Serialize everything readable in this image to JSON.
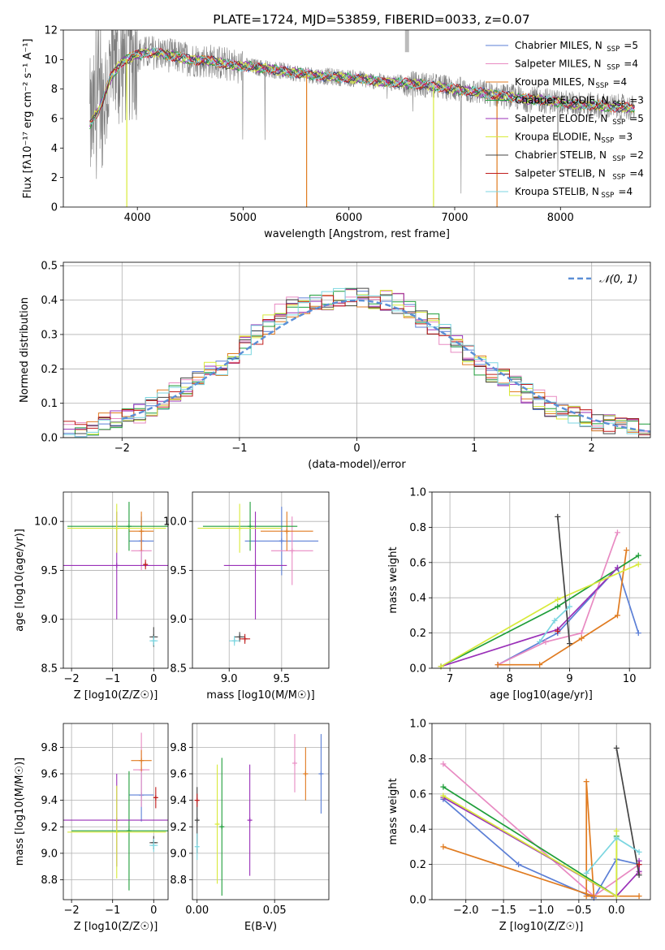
{
  "colors": {
    "Chabrier MILES": "#5b7fd6",
    "Salpeter MILES": "#e88ac2",
    "Kroupa MILES": "#e07b20",
    "Chabrier ELODIE": "#1f9e3a",
    "Salpeter ELODIE": "#9a30b8",
    "Kroupa ELODIE": "#d8ea3a",
    "Chabrier STELIB": "#444444",
    "Salpeter STELIB": "#c01c1c",
    "Kroupa STELIB": "#7bd6e0",
    "data": "#808080",
    "normal": "#5b8fd6"
  },
  "chart_data": [
    {
      "type": "line",
      "title": "PLATE=1724, MJD=53859, FIBERID=0033, z=0.07",
      "xlabel": "wavelength [Angstrom, rest frame]",
      "ylabel": "Flux [fλ10⁻¹⁷ erg cm⁻² s⁻¹ A⁻¹]",
      "xlim": [
        3300,
        8850
      ],
      "ylim": [
        0,
        12
      ],
      "xticks": [
        4000,
        5000,
        6000,
        7000,
        8000
      ],
      "yticks": [
        0,
        2,
        4,
        6,
        8,
        10,
        12
      ],
      "legend_placement": "top-right",
      "series": [
        {
          "name": "Chabrier MILES",
          "nssp": "5"
        },
        {
          "name": "Salpeter MILES",
          "nssp": "4"
        },
        {
          "name": "Kroupa MILES",
          "nssp": "4"
        },
        {
          "name": "Chabrier ELODIE",
          "nssp": "3"
        },
        {
          "name": "Salpeter ELODIE",
          "nssp": "5"
        },
        {
          "name": "Kroupa ELODIE",
          "nssp": "3"
        },
        {
          "name": "Chabrier STELIB",
          "nssp": "2"
        },
        {
          "name": "Salpeter STELIB",
          "nssp": "4"
        },
        {
          "name": "Kroupa STELIB",
          "nssp": "4"
        }
      ],
      "model_continuum": {
        "x": [
          3550,
          3650,
          3750,
          3850,
          3950,
          4050,
          4150,
          4300,
          4500,
          4700,
          4900,
          5100,
          5300,
          5500,
          5700,
          5900,
          6100,
          6300,
          6500,
          6700,
          6900,
          7100,
          7300,
          7500,
          7700,
          7900,
          8100,
          8300,
          8500,
          8700
        ],
        "y": [
          5.6,
          6.8,
          8.8,
          9.8,
          10.2,
          10.4,
          10.5,
          10.3,
          10.0,
          9.9,
          9.6,
          9.5,
          9.3,
          9.1,
          8.9,
          8.8,
          8.7,
          8.5,
          8.4,
          8.3,
          8.1,
          7.9,
          7.7,
          7.5,
          7.3,
          7.2,
          7.0,
          6.9,
          6.8,
          6.7
        ]
      },
      "model_dips": [
        {
          "series": "Kroupa MILES",
          "x": 5600,
          "y": 0
        },
        {
          "series": "Kroupa ELODIE",
          "x": 3900,
          "y": 0
        },
        {
          "series": "Kroupa ELODIE",
          "x": 6800,
          "y": 0
        },
        {
          "series": "Kroupa MILES",
          "x": 7400,
          "y": 0
        }
      ]
    },
    {
      "type": "line",
      "xlabel": "(data-model)/error",
      "ylabel": "Normed distribution",
      "xlim": [
        -2.5,
        2.5
      ],
      "ylim": [
        0,
        0.51
      ],
      "xticks": [
        -2,
        -1,
        0,
        1,
        2
      ],
      "yticks": [
        0.0,
        0.1,
        0.2,
        0.3,
        0.4,
        0.5
      ],
      "legend": "𝒩(0, 1)",
      "legend_placement": "top-right",
      "normal": {
        "mean": 0,
        "sigma": 1,
        "x_range": [
          -2,
          2.5
        ]
      },
      "bin_width": 0.1,
      "histogram_centers": [
        -2.45,
        -2.35,
        -2.25,
        -2.15,
        -2.05,
        -1.95,
        -1.85,
        -1.75,
        -1.65,
        -1.55,
        -1.45,
        -1.35,
        -1.25,
        -1.15,
        -1.05,
        -0.95,
        -0.85,
        -0.75,
        -0.65,
        -0.55,
        -0.45,
        -0.35,
        -0.25,
        -0.15,
        -0.05,
        0.05,
        0.15,
        0.25,
        0.35,
        0.45,
        0.55,
        0.65,
        0.75,
        0.85,
        0.95,
        1.05,
        1.15,
        1.25,
        1.35,
        1.45,
        1.55,
        1.65,
        1.75,
        1.85,
        1.95,
        2.05,
        2.15,
        2.25,
        2.35,
        2.45
      ],
      "histogram_base": [
        0.018,
        0.025,
        0.033,
        0.045,
        0.052,
        0.058,
        0.068,
        0.09,
        0.11,
        0.13,
        0.15,
        0.17,
        0.19,
        0.21,
        0.24,
        0.27,
        0.3,
        0.33,
        0.36,
        0.38,
        0.39,
        0.395,
        0.4,
        0.405,
        0.41,
        0.41,
        0.405,
        0.4,
        0.39,
        0.37,
        0.35,
        0.33,
        0.3,
        0.27,
        0.24,
        0.21,
        0.19,
        0.17,
        0.15,
        0.13,
        0.11,
        0.09,
        0.075,
        0.065,
        0.056,
        0.048,
        0.04,
        0.033,
        0.026,
        0.02
      ]
    },
    {
      "type": "scatter",
      "xlabel": "Z [log10(Z/Z☉)]",
      "ylabel": "age  [log10(age/yr)]",
      "xlim": [
        -2.2,
        0.35
      ],
      "ylim": [
        8.5,
        10.3
      ],
      "xticks": [
        -2,
        -1,
        0
      ],
      "yticks": [
        8.5,
        9.0,
        9.5,
        10.0
      ],
      "points": [
        {
          "series": "Chabrier MILES",
          "x": -0.3,
          "y": 9.8,
          "xerr": 0.3,
          "yerr": 0.25
        },
        {
          "series": "Salpeter MILES",
          "x": -0.3,
          "y": 9.7,
          "xerr": 0.25,
          "yerr": 0.2
        },
        {
          "series": "Kroupa MILES",
          "x": -0.3,
          "y": 9.9,
          "xerr": 0.3,
          "yerr": 0.2
        },
        {
          "series": "Chabrier ELODIE",
          "x": -0.6,
          "y": 9.95,
          "xerr": 1.5,
          "yerr": 0.25
        },
        {
          "series": "Salpeter ELODIE",
          "x": -0.9,
          "y": 9.55,
          "xerr": 1.3,
          "yerr": 0.55
        },
        {
          "series": "Kroupa ELODIE",
          "x": -0.9,
          "y": 9.93,
          "xerr": 1.2,
          "yerr": 0.25
        },
        {
          "series": "Chabrier STELIB",
          "x": 0.0,
          "y": 8.82,
          "xerr": 0.1,
          "yerr": 0.1
        },
        {
          "series": "Salpeter STELIB",
          "x": -0.2,
          "y": 9.56,
          "xerr": 0.05,
          "yerr": 0.05
        },
        {
          "series": "Kroupa STELIB",
          "x": 0.0,
          "y": 8.78,
          "xerr": 0.1,
          "yerr": 0.05
        }
      ]
    },
    {
      "type": "scatter",
      "xlabel": "mass [log10(M/M☉)]",
      "xlim": [
        8.65,
        9.95
      ],
      "ylim": [
        8.5,
        10.3
      ],
      "xticks": [
        9.0,
        9.5
      ],
      "yticks": [
        8.5,
        9.0,
        9.5,
        10.0
      ],
      "points": [
        {
          "series": "Chabrier MILES",
          "x": 9.5,
          "y": 9.8,
          "xerr": 0.35,
          "yerr": 0.35
        },
        {
          "series": "Salpeter MILES",
          "x": 9.6,
          "y": 9.7,
          "xerr": 0.2,
          "yerr": 0.35
        },
        {
          "series": "Kroupa MILES",
          "x": 9.55,
          "y": 9.9,
          "xerr": 0.25,
          "yerr": 0.2
        },
        {
          "series": "Chabrier ELODIE",
          "x": 9.2,
          "y": 9.95,
          "xerr": 0.45,
          "yerr": 0.25
        },
        {
          "series": "Salpeter ELODIE",
          "x": 9.25,
          "y": 9.55,
          "xerr": 0.3,
          "yerr": 0.55
        },
        {
          "series": "Kroupa ELODIE",
          "x": 9.1,
          "y": 9.93,
          "xerr": 0.4,
          "yerr": 0.25
        },
        {
          "series": "Chabrier STELIB",
          "x": 9.1,
          "y": 8.82,
          "xerr": 0.05,
          "yerr": 0.05
        },
        {
          "series": "Salpeter STELIB",
          "x": 9.15,
          "y": 8.8,
          "xerr": 0.05,
          "yerr": 0.05
        },
        {
          "series": "Kroupa STELIB",
          "x": 9.05,
          "y": 8.78,
          "xerr": 0.05,
          "yerr": 0.05
        }
      ]
    },
    {
      "type": "line",
      "xlabel": "age  [log10(age/yr)]",
      "ylabel": "mass weight",
      "xlim": [
        6.7,
        10.35
      ],
      "ylim": [
        0,
        1.0
      ],
      "xticks": [
        7,
        8,
        9,
        10
      ],
      "yticks": [
        0.0,
        0.2,
        0.4,
        0.6,
        0.8,
        1.0
      ],
      "series": [
        {
          "name": "Chabrier MILES",
          "x": [
            7.8,
            8.8,
            9.8,
            10.15
          ],
          "y": [
            0.02,
            0.2,
            0.57,
            0.2
          ]
        },
        {
          "name": "Salpeter MILES",
          "x": [
            7.8,
            8.6,
            9.2,
            9.8
          ],
          "y": [
            0.02,
            0.15,
            0.2,
            0.77
          ]
        },
        {
          "name": "Kroupa MILES",
          "x": [
            7.8,
            8.5,
            9.2,
            9.8,
            9.95
          ],
          "y": [
            0.02,
            0.02,
            0.17,
            0.3,
            0.67
          ]
        },
        {
          "name": "Chabrier ELODIE",
          "x": [
            6.85,
            8.8,
            10.15
          ],
          "y": [
            0.01,
            0.35,
            0.64
          ]
        },
        {
          "name": "Salpeter ELODIE",
          "x": [
            6.85,
            8.8,
            9.8
          ],
          "y": [
            0.01,
            0.22,
            0.57
          ]
        },
        {
          "name": "Kroupa ELODIE",
          "x": [
            6.85,
            8.8,
            10.15
          ],
          "y": [
            0.01,
            0.39,
            0.59
          ]
        },
        {
          "name": "Chabrier STELIB",
          "x": [
            8.8,
            9.0
          ],
          "y": [
            0.86,
            0.14
          ]
        },
        {
          "name": "Salpeter STELIB",
          "x": [
            8.8
          ],
          "y": [
            0.21
          ]
        },
        {
          "name": "Kroupa STELIB",
          "x": [
            8.5,
            8.75,
            9.0
          ],
          "y": [
            0.15,
            0.27,
            0.35
          ]
        }
      ]
    },
    {
      "type": "scatter",
      "xlabel": "Z [log10(Z/Z☉)]",
      "ylabel": "mass [log10(M/M☉)]",
      "xlim": [
        -2.2,
        0.35
      ],
      "ylim": [
        8.65,
        9.98
      ],
      "xticks": [
        -2,
        -1,
        0
      ],
      "yticks": [
        8.8,
        9.0,
        9.2,
        9.4,
        9.6,
        9.8
      ],
      "points": [
        {
          "series": "Chabrier MILES",
          "x": -0.3,
          "y": 9.44,
          "xerr": 0.3,
          "yerr": 0.2
        },
        {
          "series": "Salpeter MILES",
          "x": -0.3,
          "y": 9.63,
          "xerr": 0.2,
          "yerr": 0.28
        },
        {
          "series": "Kroupa MILES",
          "x": -0.3,
          "y": 9.7,
          "xerr": 0.25,
          "yerr": 0.08
        },
        {
          "series": "Chabrier ELODIE",
          "x": -0.6,
          "y": 9.17,
          "xerr": 1.4,
          "yerr": 0.45
        },
        {
          "series": "Salpeter ELODIE",
          "x": -0.9,
          "y": 9.25,
          "xerr": 1.3,
          "yerr": 0.35
        },
        {
          "series": "Kroupa ELODIE",
          "x": -0.9,
          "y": 9.16,
          "xerr": 1.2,
          "yerr": 0.35
        },
        {
          "series": "Chabrier STELIB",
          "x": 0.0,
          "y": 9.08,
          "xerr": 0.1,
          "yerr": 0.05
        },
        {
          "series": "Salpeter STELIB",
          "x": 0.05,
          "y": 9.42,
          "xerr": 0.05,
          "yerr": 0.08
        },
        {
          "series": "Kroupa STELIB",
          "x": 0.0,
          "y": 9.06,
          "xerr": 0.1,
          "yerr": 0.05
        }
      ]
    },
    {
      "type": "scatter",
      "xlabel": "E(B-V)",
      "xlim": [
        -0.003,
        0.085
      ],
      "ylim": [
        8.65,
        9.98
      ],
      "xticks": [
        0.0,
        0.05
      ],
      "yticks": [
        8.8,
        9.0,
        9.2,
        9.4,
        9.6,
        9.8
      ],
      "points": [
        {
          "series": "Chabrier MILES",
          "x": 0.08,
          "y": 9.6,
          "yerr": 0.3
        },
        {
          "series": "Salpeter MILES",
          "x": 0.063,
          "y": 9.68,
          "yerr": 0.22
        },
        {
          "series": "Kroupa MILES",
          "x": 0.07,
          "y": 9.6,
          "yerr": 0.2
        },
        {
          "series": "Chabrier ELODIE",
          "x": 0.016,
          "y": 9.2,
          "yerr": 0.52
        },
        {
          "series": "Salpeter ELODIE",
          "x": 0.034,
          "y": 9.25,
          "yerr": 0.42
        },
        {
          "series": "Kroupa ELODIE",
          "x": 0.013,
          "y": 9.22,
          "yerr": 0.45
        },
        {
          "series": "Chabrier STELIB",
          "x": 0.0,
          "y": 9.25,
          "yerr": 0.25
        },
        {
          "series": "Salpeter STELIB",
          "x": 0.0,
          "y": 9.4,
          "yerr": 0.05
        },
        {
          "series": "Kroupa STELIB",
          "x": 0.0,
          "y": 9.05,
          "yerr": 0.1
        }
      ]
    },
    {
      "type": "line",
      "xlabel": "Z [log10(Z/Z☉)]",
      "ylabel": "mass weight",
      "xlim": [
        -2.45,
        0.45
      ],
      "ylim": [
        0,
        1.0
      ],
      "xticks": [
        -2.0,
        -1.5,
        -1.0,
        -0.5,
        0.0
      ],
      "yticks": [
        0.0,
        0.2,
        0.4,
        0.6,
        0.8,
        1.0
      ],
      "series": [
        {
          "name": "Chabrier MILES",
          "x": [
            -2.3,
            -1.3,
            -0.3,
            0.0,
            0.3
          ],
          "y": [
            0.57,
            0.2,
            0.01,
            0.23,
            0.2
          ]
        },
        {
          "name": "Salpeter MILES",
          "x": [
            -2.3,
            -0.3,
            0.3,
            0.3
          ],
          "y": [
            0.77,
            0.02,
            0.2,
            0.15
          ]
        },
        {
          "name": "Kroupa MILES",
          "x": [
            -2.3,
            -0.3,
            -0.4,
            -0.4,
            0.3
          ],
          "y": [
            0.3,
            0.02,
            0.67,
            0.02,
            0.02
          ]
        },
        {
          "name": "Chabrier ELODIE",
          "x": [
            -2.3,
            0.0,
            0.0
          ],
          "y": [
            0.64,
            0.02,
            0.36
          ]
        },
        {
          "name": "Salpeter ELODIE",
          "x": [
            -2.3,
            0.0,
            0.3,
            0.3
          ],
          "y": [
            0.58,
            0.02,
            0.16,
            0.22
          ]
        },
        {
          "name": "Kroupa ELODIE",
          "x": [
            -2.3,
            0.0,
            0.0
          ],
          "y": [
            0.59,
            0.02,
            0.39
          ]
        },
        {
          "name": "Chabrier STELIB",
          "x": [
            0.0,
            0.3
          ],
          "y": [
            0.86,
            0.14
          ]
        },
        {
          "name": "Salpeter STELIB",
          "x": [
            0.3
          ],
          "y": [
            0.2
          ]
        },
        {
          "name": "Kroupa STELIB",
          "x": [
            -0.4,
            0.0,
            0.3
          ],
          "y": [
            0.15,
            0.35,
            0.27
          ]
        }
      ]
    }
  ]
}
